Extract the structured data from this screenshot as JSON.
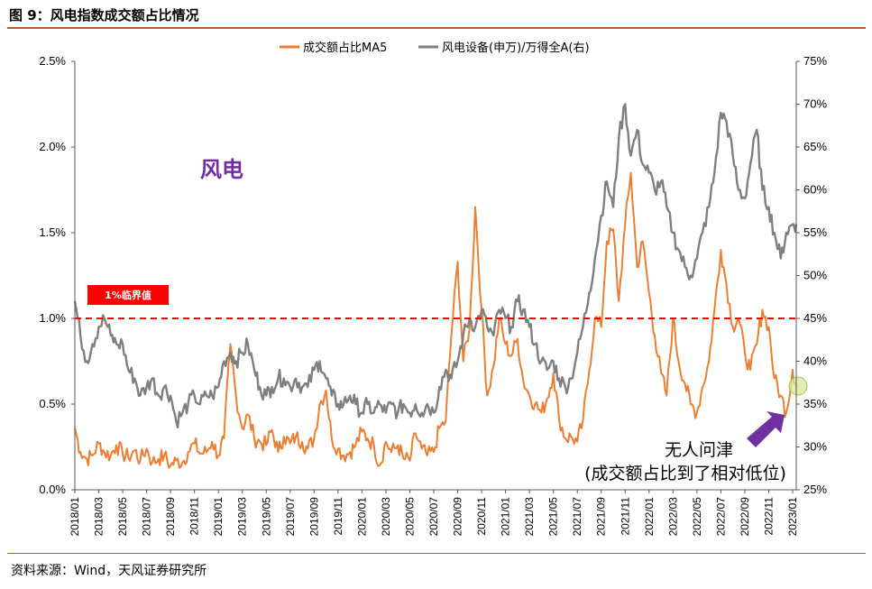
{
  "header": {
    "title": "图 9：风电指数成交额占比情况"
  },
  "footer": {
    "source": "资料来源：Wind，天风证券研究所"
  },
  "colors": {
    "orange": "#ed7d31",
    "gray": "#7f7f7f",
    "threshold": "#ff0000",
    "annotation": "#7030a0",
    "accent": "#c55a11"
  },
  "chart_data": {
    "type": "line",
    "title": "",
    "legend": {
      "position": "top-center",
      "entries": [
        "成交额占比MA5",
        "风电设备(申万)/万得全A(右)"
      ]
    },
    "y_left": {
      "ticks": [
        "0.0%",
        "0.5%",
        "1.0%",
        "1.5%",
        "2.0%",
        "2.5%"
      ],
      "range": [
        0.0,
        2.5
      ],
      "unit": "%"
    },
    "y_right": {
      "ticks": [
        "25%",
        "30%",
        "35%",
        "40%",
        "45%",
        "50%",
        "55%",
        "60%",
        "65%",
        "70%",
        "75%"
      ],
      "range": [
        25,
        75
      ],
      "unit": "%"
    },
    "x_ticks": [
      "2018/01",
      "2018/03",
      "2018/05",
      "2018/07",
      "2018/09",
      "2018/11",
      "2019/01",
      "2019/03",
      "2019/05",
      "2019/07",
      "2019/09",
      "2019/11",
      "2020/01",
      "2020/03",
      "2020/05",
      "2020/07",
      "2020/09",
      "2020/11",
      "2021/01",
      "2021/03",
      "2021/05",
      "2021/07",
      "2021/09",
      "2021/11",
      "2022/01",
      "2022/03",
      "2022/05",
      "2022/07",
      "2022/09",
      "2022/11",
      "2023/01"
    ],
    "threshold": {
      "value": 1.0,
      "label": "1%临界值"
    },
    "annotations": {
      "main": "风电",
      "note_line1": "无人问津",
      "note_line2": "(成交额占比到了相对低位)"
    },
    "series": [
      {
        "name": "成交额占比MA5",
        "axis": "left",
        "points": [
          [
            "2018/01",
            0.36
          ],
          [
            "2018/01/15",
            0.22
          ],
          [
            "2018/02",
            0.18
          ],
          [
            "2018/02/15",
            0.2
          ],
          [
            "2018/03",
            0.27
          ],
          [
            "2018/03/15",
            0.22
          ],
          [
            "2018/04",
            0.2
          ],
          [
            "2018/04/15",
            0.26
          ],
          [
            "2018/05",
            0.21
          ],
          [
            "2018/05/15",
            0.19
          ],
          [
            "2018/06",
            0.23
          ],
          [
            "2018/06/15",
            0.17
          ],
          [
            "2018/07",
            0.24
          ],
          [
            "2018/07/15",
            0.16
          ],
          [
            "2018/08",
            0.18
          ],
          [
            "2018/08/15",
            0.2
          ],
          [
            "2018/09",
            0.14
          ],
          [
            "2018/09/15",
            0.17
          ],
          [
            "2018/10",
            0.16
          ],
          [
            "2018/10/15",
            0.22
          ],
          [
            "2018/11",
            0.27
          ],
          [
            "2018/11/15",
            0.21
          ],
          [
            "2018/12",
            0.22
          ],
          [
            "2018/12/15",
            0.28
          ],
          [
            "2019/01",
            0.2
          ],
          [
            "2019/01/15",
            0.3
          ],
          [
            "2019/02",
            0.85
          ],
          [
            "2019/02/15",
            0.55
          ],
          [
            "2019/03",
            0.36
          ],
          [
            "2019/03/15",
            0.44
          ],
          [
            "2019/04",
            0.3
          ],
          [
            "2019/04/15",
            0.28
          ],
          [
            "2019/05",
            0.26
          ],
          [
            "2019/05/15",
            0.35
          ],
          [
            "2019/06",
            0.22
          ],
          [
            "2019/06/15",
            0.31
          ],
          [
            "2019/07",
            0.27
          ],
          [
            "2019/07/15",
            0.31
          ],
          [
            "2019/08",
            0.28
          ],
          [
            "2019/08/15",
            0.24
          ],
          [
            "2019/09",
            0.3
          ],
          [
            "2019/09/15",
            0.5
          ],
          [
            "2019/10",
            0.58
          ],
          [
            "2019/10/15",
            0.3
          ],
          [
            "2019/11",
            0.24
          ],
          [
            "2019/11/15",
            0.2
          ],
          [
            "2019/12",
            0.22
          ],
          [
            "2019/12/15",
            0.26
          ],
          [
            "2020/01",
            0.34
          ],
          [
            "2020/01/15",
            0.3
          ],
          [
            "2020/02",
            0.26
          ],
          [
            "2020/02/15",
            0.14
          ],
          [
            "2020/03",
            0.28
          ],
          [
            "2020/03/15",
            0.22
          ],
          [
            "2020/04",
            0.26
          ],
          [
            "2020/04/15",
            0.18
          ],
          [
            "2020/05",
            0.17
          ],
          [
            "2020/05/15",
            0.33
          ],
          [
            "2020/06",
            0.24
          ],
          [
            "2020/06/15",
            0.2
          ],
          [
            "2020/07",
            0.22
          ],
          [
            "2020/07/15",
            0.36
          ],
          [
            "2020/08",
            0.4
          ],
          [
            "2020/08/15",
            0.9
          ],
          [
            "2020/09",
            1.33
          ],
          [
            "2020/09/15",
            0.75
          ],
          [
            "2020/10",
            0.95
          ],
          [
            "2020/10/15",
            1.65
          ],
          [
            "2020/11",
            1.05
          ],
          [
            "2020/11/15",
            0.55
          ],
          [
            "2020/12",
            0.72
          ],
          [
            "2020/12/15",
            1.0
          ],
          [
            "2021/01",
            0.85
          ],
          [
            "2021/01/15",
            0.78
          ],
          [
            "2021/02",
            0.88
          ],
          [
            "2021/02/15",
            0.64
          ],
          [
            "2021/03",
            0.55
          ],
          [
            "2021/03/15",
            0.5
          ],
          [
            "2021/04",
            0.45
          ],
          [
            "2021/04/15",
            0.53
          ],
          [
            "2021/05",
            0.68
          ],
          [
            "2021/05/15",
            0.42
          ],
          [
            "2021/06",
            0.3
          ],
          [
            "2021/06/15",
            0.31
          ],
          [
            "2021/07",
            0.28
          ],
          [
            "2021/07/15",
            0.4
          ],
          [
            "2021/08",
            0.7
          ],
          [
            "2021/08/15",
            1.0
          ],
          [
            "2021/09",
            0.95
          ],
          [
            "2021/09/15",
            1.45
          ],
          [
            "2021/10",
            1.52
          ],
          [
            "2021/10/15",
            1.1
          ],
          [
            "2021/11",
            1.55
          ],
          [
            "2021/11/15",
            1.85
          ],
          [
            "2021/12",
            1.3
          ],
          [
            "2021/12/15",
            1.45
          ],
          [
            "2022/01",
            1.15
          ],
          [
            "2022/01/15",
            0.9
          ],
          [
            "2022/02",
            0.68
          ],
          [
            "2022/02/15",
            0.55
          ],
          [
            "2022/03",
            1.0
          ],
          [
            "2022/03/15",
            0.75
          ],
          [
            "2022/04",
            0.62
          ],
          [
            "2022/04/15",
            0.5
          ],
          [
            "2022/05",
            0.45
          ],
          [
            "2022/05/15",
            0.6
          ],
          [
            "2022/06",
            0.75
          ],
          [
            "2022/06/15",
            1.05
          ],
          [
            "2022/07",
            1.4
          ],
          [
            "2022/07/15",
            1.2
          ],
          [
            "2022/08",
            0.95
          ],
          [
            "2022/08/15",
            1.0
          ],
          [
            "2022/09",
            0.8
          ],
          [
            "2022/09/15",
            0.7
          ],
          [
            "2022/10",
            0.85
          ],
          [
            "2022/10/15",
            1.05
          ],
          [
            "2022/11",
            0.95
          ],
          [
            "2022/11/15",
            0.65
          ],
          [
            "2022/12",
            0.55
          ],
          [
            "2022/12/15",
            0.45
          ],
          [
            "2023/01",
            0.7
          ],
          [
            "2023/01/10",
            0.6
          ]
        ]
      },
      {
        "name": "风电设备(申万)/万得全A(右)",
        "axis": "right",
        "points": [
          [
            "2018/01",
            47
          ],
          [
            "2018/01/15",
            43
          ],
          [
            "2018/02",
            40
          ],
          [
            "2018/02/15",
            42
          ],
          [
            "2018/03",
            44
          ],
          [
            "2018/03/15",
            45
          ],
          [
            "2018/04",
            43
          ],
          [
            "2018/04/15",
            42
          ],
          [
            "2018/05",
            42
          ],
          [
            "2018/05/15",
            39
          ],
          [
            "2018/06",
            38
          ],
          [
            "2018/06/15",
            36
          ],
          [
            "2018/07",
            37
          ],
          [
            "2018/07/15",
            38
          ],
          [
            "2018/08",
            36
          ],
          [
            "2018/08/15",
            37
          ],
          [
            "2018/09",
            36
          ],
          [
            "2018/09/15",
            33
          ],
          [
            "2018/10",
            34
          ],
          [
            "2018/10/15",
            35
          ],
          [
            "2018/11",
            36
          ],
          [
            "2018/11/15",
            35
          ],
          [
            "2018/12",
            36
          ],
          [
            "2018/12/15",
            36
          ],
          [
            "2019/01",
            37
          ],
          [
            "2019/01/15",
            40
          ],
          [
            "2019/02",
            41
          ],
          [
            "2019/02/15",
            40
          ],
          [
            "2019/03",
            41
          ],
          [
            "2019/03/15",
            42
          ],
          [
            "2019/04",
            39
          ],
          [
            "2019/04/15",
            37
          ],
          [
            "2019/05",
            36
          ],
          [
            "2019/05/15",
            37
          ],
          [
            "2019/06",
            38
          ],
          [
            "2019/06/15",
            38
          ],
          [
            "2019/07",
            37
          ],
          [
            "2019/07/15",
            38
          ],
          [
            "2019/08",
            37
          ],
          [
            "2019/08/15",
            37
          ],
          [
            "2019/09",
            39
          ],
          [
            "2019/09/15",
            40
          ],
          [
            "2019/10",
            38
          ],
          [
            "2019/10/15",
            36
          ],
          [
            "2019/11",
            35
          ],
          [
            "2019/11/15",
            35
          ],
          [
            "2019/12",
            36
          ],
          [
            "2019/12/15",
            35
          ],
          [
            "2020/01",
            34
          ],
          [
            "2020/01/15",
            35
          ],
          [
            "2020/02",
            34
          ],
          [
            "2020/02/15",
            35
          ],
          [
            "2020/03",
            34
          ],
          [
            "2020/03/15",
            35
          ],
          [
            "2020/04",
            34
          ],
          [
            "2020/04/15",
            35
          ],
          [
            "2020/05",
            34
          ],
          [
            "2020/05/15",
            35
          ],
          [
            "2020/06",
            34
          ],
          [
            "2020/06/15",
            35
          ],
          [
            "2020/07",
            34
          ],
          [
            "2020/07/15",
            37
          ],
          [
            "2020/08",
            39
          ],
          [
            "2020/08/15",
            38
          ],
          [
            "2020/09",
            40
          ],
          [
            "2020/09/15",
            43
          ],
          [
            "2020/10",
            45
          ],
          [
            "2020/10/15",
            44
          ],
          [
            "2020/11",
            46
          ],
          [
            "2020/11/15",
            44
          ],
          [
            "2020/12",
            43
          ],
          [
            "2020/12/15",
            46
          ],
          [
            "2021/01",
            45
          ],
          [
            "2021/01/15",
            44
          ],
          [
            "2021/02",
            47
          ],
          [
            "2021/02/15",
            46
          ],
          [
            "2021/03",
            44
          ],
          [
            "2021/03/15",
            42
          ],
          [
            "2021/04",
            40
          ],
          [
            "2021/04/15",
            39
          ],
          [
            "2021/05",
            40
          ],
          [
            "2021/05/15",
            38
          ],
          [
            "2021/06",
            37
          ],
          [
            "2021/06/15",
            38
          ],
          [
            "2021/07",
            41
          ],
          [
            "2021/07/15",
            44
          ],
          [
            "2021/08",
            48
          ],
          [
            "2021/08/15",
            52
          ],
          [
            "2021/09",
            57
          ],
          [
            "2021/09/15",
            61
          ],
          [
            "2021/10",
            58
          ],
          [
            "2021/10/15",
            66
          ],
          [
            "2021/11",
            70
          ],
          [
            "2021/11/15",
            64
          ],
          [
            "2021/12",
            67
          ],
          [
            "2021/12/15",
            63
          ],
          [
            "2022/01",
            62
          ],
          [
            "2022/01/15",
            60
          ],
          [
            "2022/02",
            61
          ],
          [
            "2022/02/15",
            58
          ],
          [
            "2022/03",
            55
          ],
          [
            "2022/03/15",
            53
          ],
          [
            "2022/04",
            51
          ],
          [
            "2022/04/15",
            50
          ],
          [
            "2022/05",
            52
          ],
          [
            "2022/05/15",
            55
          ],
          [
            "2022/06",
            58
          ],
          [
            "2022/06/15",
            62
          ],
          [
            "2022/07",
            69
          ],
          [
            "2022/07/15",
            68
          ],
          [
            "2022/08",
            64
          ],
          [
            "2022/08/15",
            60
          ],
          [
            "2022/09",
            59
          ],
          [
            "2022/09/15",
            63
          ],
          [
            "2022/10",
            67
          ],
          [
            "2022/10/15",
            60
          ],
          [
            "2022/11",
            58
          ],
          [
            "2022/11/15",
            55
          ],
          [
            "2022/12",
            52
          ],
          [
            "2022/12/15",
            55
          ],
          [
            "2023/01",
            56
          ],
          [
            "2023/01/10",
            56
          ]
        ]
      }
    ]
  }
}
